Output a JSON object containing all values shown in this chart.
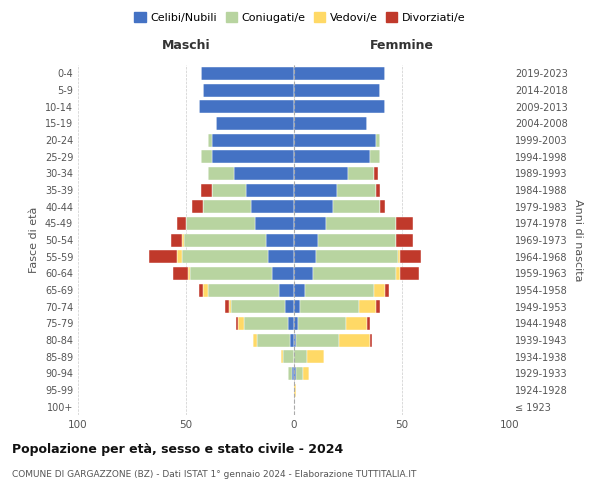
{
  "age_groups": [
    "100+",
    "95-99",
    "90-94",
    "85-89",
    "80-84",
    "75-79",
    "70-74",
    "65-69",
    "60-64",
    "55-59",
    "50-54",
    "45-49",
    "40-44",
    "35-39",
    "30-34",
    "25-29",
    "20-24",
    "15-19",
    "10-14",
    "5-9",
    "0-4"
  ],
  "birth_years": [
    "≤ 1923",
    "1924-1928",
    "1929-1933",
    "1934-1938",
    "1939-1943",
    "1944-1948",
    "1949-1953",
    "1954-1958",
    "1959-1963",
    "1964-1968",
    "1969-1973",
    "1974-1978",
    "1979-1983",
    "1984-1988",
    "1989-1993",
    "1994-1998",
    "1999-2003",
    "2004-2008",
    "2009-2013",
    "2014-2018",
    "2019-2023"
  ],
  "males": {
    "celibi": [
      0,
      0,
      1,
      0,
      2,
      3,
      4,
      7,
      10,
      12,
      13,
      18,
      20,
      22,
      28,
      38,
      38,
      36,
      44,
      42,
      43
    ],
    "coniugati": [
      0,
      0,
      2,
      5,
      15,
      20,
      25,
      33,
      38,
      40,
      38,
      32,
      22,
      16,
      12,
      5,
      2,
      0,
      0,
      0,
      0
    ],
    "vedovi": [
      0,
      0,
      0,
      1,
      2,
      3,
      1,
      2,
      1,
      2,
      1,
      0,
      0,
      0,
      0,
      0,
      0,
      0,
      0,
      0,
      0
    ],
    "divorziati": [
      0,
      0,
      0,
      0,
      0,
      1,
      2,
      2,
      7,
      13,
      5,
      4,
      5,
      5,
      0,
      0,
      0,
      0,
      0,
      0,
      0
    ]
  },
  "females": {
    "nubili": [
      0,
      0,
      1,
      0,
      1,
      2,
      3,
      5,
      9,
      10,
      11,
      15,
      18,
      20,
      25,
      35,
      38,
      34,
      42,
      40,
      42
    ],
    "coniugate": [
      0,
      0,
      3,
      6,
      20,
      22,
      27,
      32,
      38,
      38,
      36,
      32,
      22,
      18,
      12,
      5,
      2,
      0,
      0,
      0,
      0
    ],
    "vedove": [
      0,
      1,
      3,
      8,
      14,
      10,
      8,
      5,
      2,
      1,
      0,
      0,
      0,
      0,
      0,
      0,
      0,
      0,
      0,
      0,
      0
    ],
    "divorziate": [
      0,
      0,
      0,
      0,
      1,
      1,
      2,
      2,
      9,
      10,
      8,
      8,
      2,
      2,
      2,
      0,
      0,
      0,
      0,
      0,
      0
    ]
  },
  "colors": {
    "celibi": "#4472c4",
    "coniugati": "#b8d4a0",
    "vedovi": "#ffd966",
    "divorziati": "#c0392b"
  },
  "xlim": 100,
  "title": "Popolazione per età, sesso e stato civile - 2024",
  "subtitle": "COMUNE DI GARGAZZONE (BZ) - Dati ISTAT 1° gennaio 2024 - Elaborazione TUTTITALIA.IT",
  "ylabel_left": "Fasce di età",
  "ylabel_right": "Anni di nascita",
  "xlabel_left": "Maschi",
  "xlabel_right": "Femmine",
  "legend_labels": [
    "Celibi/Nubili",
    "Coniugati/e",
    "Vedovi/e",
    "Divorziati/e"
  ],
  "background_color": "#ffffff",
  "grid_color": "#cccccc"
}
